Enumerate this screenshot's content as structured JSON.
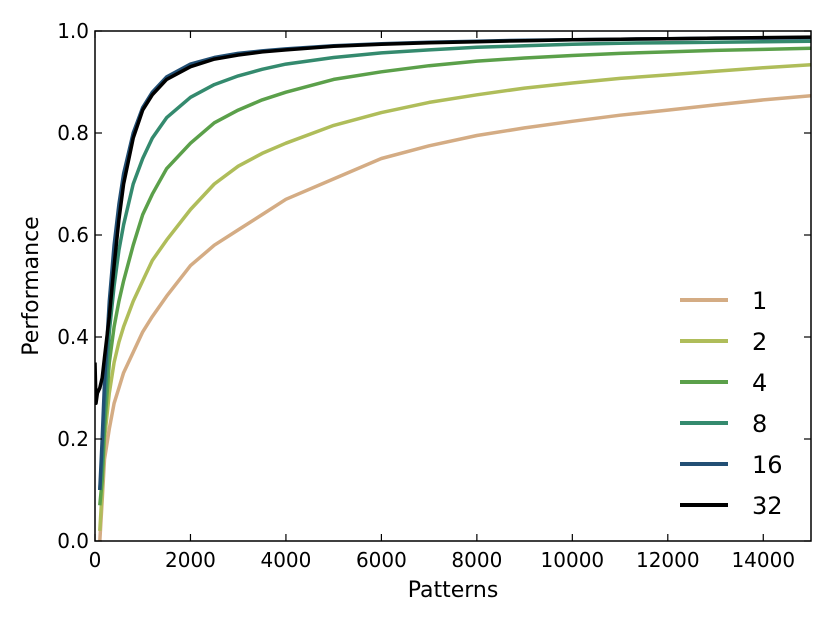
{
  "chart_data": {
    "type": "line",
    "title": "",
    "xlabel": "Patterns",
    "ylabel": "Performance",
    "xlim": [
      0,
      15000
    ],
    "ylim": [
      0,
      1.0
    ],
    "grid": false,
    "legend_position": "bottom-right",
    "x_ticks": [
      "0",
      "2000",
      "4000",
      "6000",
      "8000",
      "10000",
      "12000",
      "14000"
    ],
    "y_ticks": [
      "0.0",
      "0.2",
      "0.4",
      "0.6",
      "0.8",
      "1.0"
    ],
    "series": [
      {
        "name": "1",
        "color": "#d4ac84",
        "x": [
          100,
          150,
          200,
          300,
          400,
          500,
          600,
          800,
          1000,
          1200,
          1500,
          2000,
          2500,
          3000,
          3500,
          4000,
          5000,
          6000,
          7000,
          8000,
          9000,
          10000,
          11000,
          12000,
          13000,
          14000,
          15000
        ],
        "y": [
          0.0,
          0.08,
          0.16,
          0.22,
          0.27,
          0.3,
          0.33,
          0.37,
          0.41,
          0.44,
          0.48,
          0.54,
          0.58,
          0.61,
          0.64,
          0.67,
          0.71,
          0.75,
          0.775,
          0.795,
          0.81,
          0.823,
          0.835,
          0.845,
          0.855,
          0.865,
          0.873
        ]
      },
      {
        "name": "2",
        "color": "#afbd5a",
        "x": [
          100,
          150,
          200,
          300,
          400,
          500,
          600,
          800,
          1000,
          1200,
          1500,
          2000,
          2500,
          3000,
          3500,
          4000,
          5000,
          6000,
          7000,
          8000,
          9000,
          10000,
          11000,
          12000,
          13000,
          14000,
          15000
        ],
        "y": [
          0.02,
          0.1,
          0.2,
          0.29,
          0.35,
          0.39,
          0.42,
          0.47,
          0.51,
          0.55,
          0.59,
          0.65,
          0.7,
          0.735,
          0.76,
          0.78,
          0.815,
          0.84,
          0.86,
          0.875,
          0.888,
          0.898,
          0.907,
          0.914,
          0.921,
          0.928,
          0.934
        ]
      },
      {
        "name": "4",
        "color": "#5ba04a",
        "x": [
          100,
          150,
          200,
          300,
          400,
          500,
          600,
          800,
          1000,
          1200,
          1500,
          2000,
          2500,
          3000,
          3500,
          4000,
          5000,
          6000,
          7000,
          8000,
          9000,
          10000,
          11000,
          12000,
          13000,
          14000,
          15000
        ],
        "y": [
          0.07,
          0.12,
          0.22,
          0.35,
          0.42,
          0.47,
          0.51,
          0.58,
          0.64,
          0.68,
          0.73,
          0.78,
          0.82,
          0.845,
          0.865,
          0.88,
          0.905,
          0.92,
          0.932,
          0.941,
          0.947,
          0.952,
          0.956,
          0.959,
          0.962,
          0.964,
          0.966
        ]
      },
      {
        "name": "8",
        "color": "#348a6e",
        "x": [
          100,
          150,
          200,
          300,
          400,
          500,
          600,
          800,
          1000,
          1200,
          1500,
          2000,
          2500,
          3000,
          3500,
          4000,
          5000,
          6000,
          7000,
          8000,
          9000,
          10000,
          11000,
          12000,
          13000,
          14000,
          15000
        ],
        "y": [
          0.1,
          0.16,
          0.26,
          0.41,
          0.5,
          0.57,
          0.62,
          0.7,
          0.75,
          0.79,
          0.83,
          0.87,
          0.895,
          0.912,
          0.925,
          0.935,
          0.948,
          0.957,
          0.963,
          0.968,
          0.971,
          0.974,
          0.976,
          0.977,
          0.978,
          0.979,
          0.98
        ]
      },
      {
        "name": "16",
        "color": "#224f74",
        "x": [
          100,
          150,
          200,
          300,
          400,
          500,
          600,
          800,
          1000,
          1200,
          1500,
          2000,
          2500,
          3000,
          3500,
          4000,
          5000,
          6000,
          7000,
          8000,
          9000,
          10000,
          11000,
          12000,
          13000,
          14000,
          15000
        ],
        "y": [
          0.1,
          0.2,
          0.31,
          0.47,
          0.58,
          0.66,
          0.72,
          0.8,
          0.85,
          0.88,
          0.91,
          0.935,
          0.948,
          0.956,
          0.961,
          0.965,
          0.971,
          0.975,
          0.978,
          0.98,
          0.982,
          0.983,
          0.984,
          0.985,
          0.986,
          0.986,
          0.987
        ]
      },
      {
        "name": "32",
        "color": "#000000",
        "x": [
          0,
          20,
          50,
          100,
          150,
          200,
          300,
          400,
          500,
          600,
          800,
          1000,
          1200,
          1500,
          2000,
          2500,
          3000,
          3500,
          4000,
          5000,
          6000,
          7000,
          8000,
          9000,
          10000,
          11000,
          12000,
          13000,
          14000,
          15000
        ],
        "y": [
          0.35,
          0.27,
          0.29,
          0.3,
          0.32,
          0.36,
          0.44,
          0.54,
          0.63,
          0.7,
          0.79,
          0.845,
          0.875,
          0.905,
          0.93,
          0.945,
          0.953,
          0.959,
          0.963,
          0.97,
          0.974,
          0.977,
          0.979,
          0.981,
          0.983,
          0.984,
          0.985,
          0.986,
          0.987,
          0.988
        ]
      }
    ]
  }
}
